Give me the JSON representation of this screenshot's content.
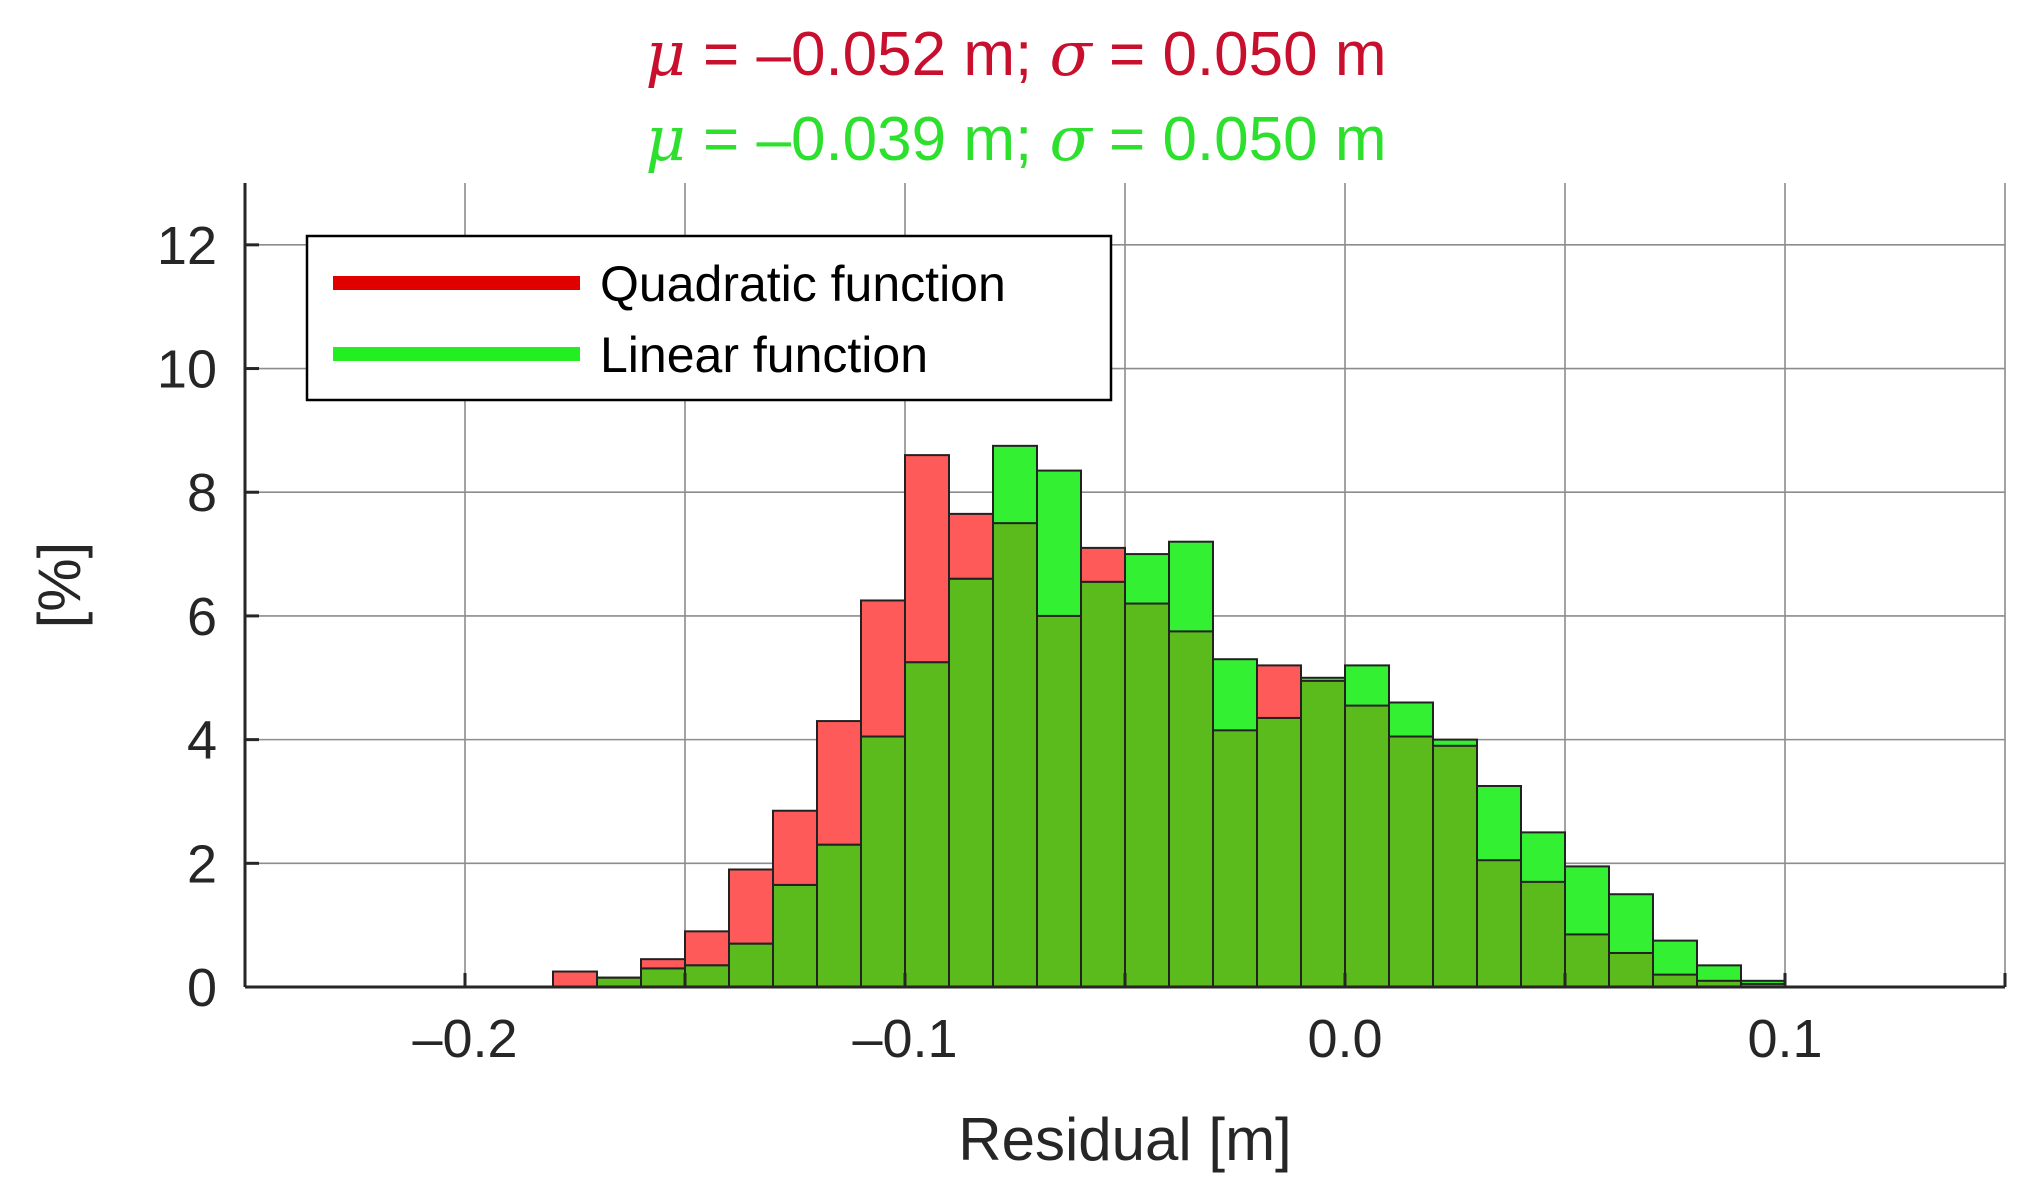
{
  "chart_data": {
    "type": "bar",
    "subtype": "overlaid-histogram",
    "title_lines": [
      {
        "mu_symbol": "μ",
        "mu_text": " = –0.052 m; ",
        "sigma_symbol": "σ",
        "sigma_text": " = 0.050 m",
        "color": "#c8102e"
      },
      {
        "mu_symbol": "μ",
        "mu_text": " = –0.039 m; ",
        "sigma_symbol": "σ",
        "sigma_text": " = 0.050 m",
        "color": "#2ee02e"
      }
    ],
    "xlabel": "Residual [m]",
    "ylabel": "[%]",
    "xlim": [
      -0.25,
      0.15
    ],
    "ylim": [
      0,
      13
    ],
    "xticks": [
      -0.25,
      -0.2,
      -0.15,
      -0.1,
      -0.05,
      0.0,
      0.05,
      0.1,
      0.15
    ],
    "xtick_labels": [
      "",
      "–0.2",
      "",
      "–0.1",
      "",
      "0.0",
      "",
      "0.1",
      ""
    ],
    "yticks": [
      0,
      2,
      4,
      6,
      8,
      10,
      12
    ],
    "ytick_labels": [
      "0",
      "2",
      "4",
      "6",
      "8",
      "10",
      "12"
    ],
    "grid": true,
    "legend_position": "top-left",
    "bin_edges": [
      -0.18,
      -0.17,
      -0.16,
      -0.15,
      -0.14,
      -0.13,
      -0.12,
      -0.11,
      -0.1,
      -0.09,
      -0.08,
      -0.07,
      -0.06,
      -0.05,
      -0.04,
      -0.03,
      -0.02,
      -0.01,
      0.0,
      0.01,
      0.02,
      0.03,
      0.04,
      0.05,
      0.06,
      0.07,
      0.08,
      0.09,
      0.1
    ],
    "series": [
      {
        "name": "Quadratic function",
        "color": "#ff5a5a",
        "legend_color": "#e00000",
        "values": [
          0.25,
          0.15,
          0.45,
          0.9,
          1.9,
          2.85,
          4.3,
          6.25,
          8.6,
          7.65,
          7.5,
          6.0,
          7.1,
          6.2,
          5.75,
          4.15,
          5.2,
          4.95,
          4.55,
          4.05,
          3.9,
          2.05,
          1.7,
          0.85,
          0.55,
          0.2,
          0.1,
          0.05
        ]
      },
      {
        "name": "Linear function",
        "color": "#33f033",
        "legend_color": "#22ee22",
        "values": [
          0.0,
          0.15,
          0.3,
          0.35,
          0.7,
          1.65,
          2.3,
          4.05,
          5.25,
          6.6,
          8.75,
          8.35,
          6.55,
          7.0,
          7.2,
          5.3,
          4.35,
          5.0,
          5.2,
          4.6,
          4.0,
          3.25,
          2.5,
          1.95,
          1.5,
          0.75,
          0.35,
          0.1
        ]
      }
    ],
    "overlap_color": "#5cbb1c"
  }
}
